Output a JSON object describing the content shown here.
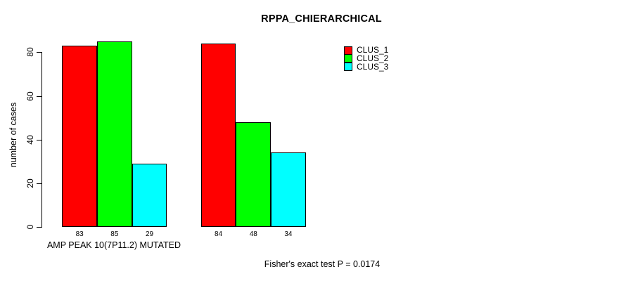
{
  "chart_data": {
    "type": "bar",
    "title": "RPPA_CHIERARCHICAL",
    "ylabel": "number of cases",
    "xlabel": "AMP PEAK 10(7P11.2) MUTATED",
    "annotation": "Fisher's exact test P = 0.0174",
    "yticks": [
      0,
      20,
      40,
      60,
      80
    ],
    "ylim": [
      0,
      85
    ],
    "grid": false,
    "legend_position": "top-right",
    "show_bar_value_labels": true,
    "group_count": 2,
    "series": [
      {
        "name": "CLUS_1",
        "color": "#ff0000",
        "values": [
          83,
          84
        ]
      },
      {
        "name": "CLUS_2",
        "color": "#00ff00",
        "values": [
          85,
          48
        ]
      },
      {
        "name": "CLUS_3",
        "color": "#00ffff",
        "values": [
          29,
          34
        ]
      }
    ],
    "colors": {
      "bar_border": "#000000",
      "axis": "#000000",
      "text": "#000000",
      "background": "#ffffff"
    }
  }
}
